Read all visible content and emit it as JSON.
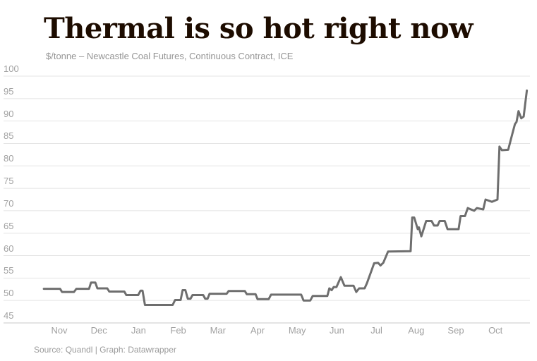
{
  "header": {
    "title": "Thermal is so hot right now",
    "subtitle": "$/tonne – Newcastle Coal Futures, Continuous Contract, ICE"
  },
  "footer": {
    "source": "Source: Quandl | Graph: Datawrapper"
  },
  "colors": {
    "title_text": "#1d0c00",
    "muted_text": "#9b9b9b",
    "tick_text": "#a1a1a1",
    "line": "#6e6e6e",
    "gridline": "#e4e4e4",
    "baseline": "#c9c9c9",
    "background": "#ffffff"
  },
  "chart_data": {
    "type": "line",
    "title": "Thermal is so hot right now",
    "units": "$/tonne",
    "series_name": "Newcastle Coal Futures, Continuous Contract, ICE",
    "xlabel": "",
    "ylabel": "$/tonne",
    "xticks": [
      "Nov",
      "Dec",
      "Jan",
      "Feb",
      "Mar",
      "Apr",
      "May",
      "Jun",
      "Jul",
      "Aug",
      "Sep",
      "Oct"
    ],
    "yticks": [
      45,
      50,
      55,
      60,
      65,
      70,
      75,
      80,
      85,
      90,
      95,
      100
    ],
    "ylim": [
      45,
      100
    ],
    "x_unit": "month index (0 = Nov tick, 11 = Oct tick; data runs late Oct to late Oct of following year)",
    "grid": true,
    "legend": "none",
    "points": [
      [
        -0.39,
        52.6
      ],
      [
        0.02,
        52.6
      ],
      [
        0.07,
        51.9
      ],
      [
        0.37,
        51.9
      ],
      [
        0.43,
        52.6
      ],
      [
        0.75,
        52.6
      ],
      [
        0.8,
        54.0
      ],
      [
        0.91,
        54.0
      ],
      [
        0.96,
        52.7
      ],
      [
        1.21,
        52.7
      ],
      [
        1.26,
        52.0
      ],
      [
        1.64,
        52.0
      ],
      [
        1.69,
        51.2
      ],
      [
        1.99,
        51.2
      ],
      [
        2.05,
        52.2
      ],
      [
        2.1,
        52.2
      ],
      [
        2.16,
        49.0
      ],
      [
        2.86,
        49.0
      ],
      [
        2.92,
        50.1
      ],
      [
        3.06,
        50.1
      ],
      [
        3.11,
        52.3
      ],
      [
        3.18,
        52.3
      ],
      [
        3.24,
        50.4
      ],
      [
        3.31,
        50.4
      ],
      [
        3.36,
        51.2
      ],
      [
        3.63,
        51.2
      ],
      [
        3.68,
        50.4
      ],
      [
        3.74,
        50.4
      ],
      [
        3.79,
        51.5
      ],
      [
        4.22,
        51.5
      ],
      [
        4.27,
        52.1
      ],
      [
        4.68,
        52.1
      ],
      [
        4.73,
        51.4
      ],
      [
        4.95,
        51.4
      ],
      [
        5.0,
        50.3
      ],
      [
        5.28,
        50.3
      ],
      [
        5.34,
        51.3
      ],
      [
        6.1,
        51.3
      ],
      [
        6.16,
        50.0
      ],
      [
        6.33,
        50.0
      ],
      [
        6.39,
        51.0
      ],
      [
        6.76,
        51.0
      ],
      [
        6.81,
        52.7
      ],
      [
        6.87,
        52.3
      ],
      [
        6.92,
        53.0
      ],
      [
        6.99,
        53.0
      ],
      [
        7.1,
        55.2
      ],
      [
        7.19,
        53.3
      ],
      [
        7.42,
        53.3
      ],
      [
        7.49,
        51.9
      ],
      [
        7.56,
        52.7
      ],
      [
        7.7,
        52.7
      ],
      [
        7.76,
        53.9
      ],
      [
        7.94,
        58.3
      ],
      [
        8.04,
        58.4
      ],
      [
        8.1,
        57.8
      ],
      [
        8.17,
        58.4
      ],
      [
        8.29,
        60.9
      ],
      [
        8.86,
        61.0
      ],
      [
        8.9,
        68.5
      ],
      [
        8.95,
        68.5
      ],
      [
        9.04,
        65.9
      ],
      [
        9.07,
        66.3
      ],
      [
        9.13,
        64.3
      ],
      [
        9.25,
        67.7
      ],
      [
        9.39,
        67.7
      ],
      [
        9.45,
        66.7
      ],
      [
        9.54,
        66.7
      ],
      [
        9.59,
        67.7
      ],
      [
        9.72,
        67.7
      ],
      [
        9.79,
        65.9
      ],
      [
        10.07,
        65.9
      ],
      [
        10.12,
        68.8
      ],
      [
        10.23,
        68.8
      ],
      [
        10.3,
        70.6
      ],
      [
        10.46,
        70.0
      ],
      [
        10.53,
        70.6
      ],
      [
        10.69,
        70.3
      ],
      [
        10.75,
        72.5
      ],
      [
        10.91,
        72.0
      ],
      [
        11.05,
        72.5
      ],
      [
        11.1,
        84.3
      ],
      [
        11.16,
        83.5
      ],
      [
        11.32,
        83.6
      ],
      [
        11.42,
        87.0
      ],
      [
        11.49,
        89.3
      ],
      [
        11.53,
        89.8
      ],
      [
        11.58,
        92.2
      ],
      [
        11.65,
        90.6
      ],
      [
        11.71,
        91.0
      ],
      [
        11.79,
        96.8
      ]
    ]
  }
}
